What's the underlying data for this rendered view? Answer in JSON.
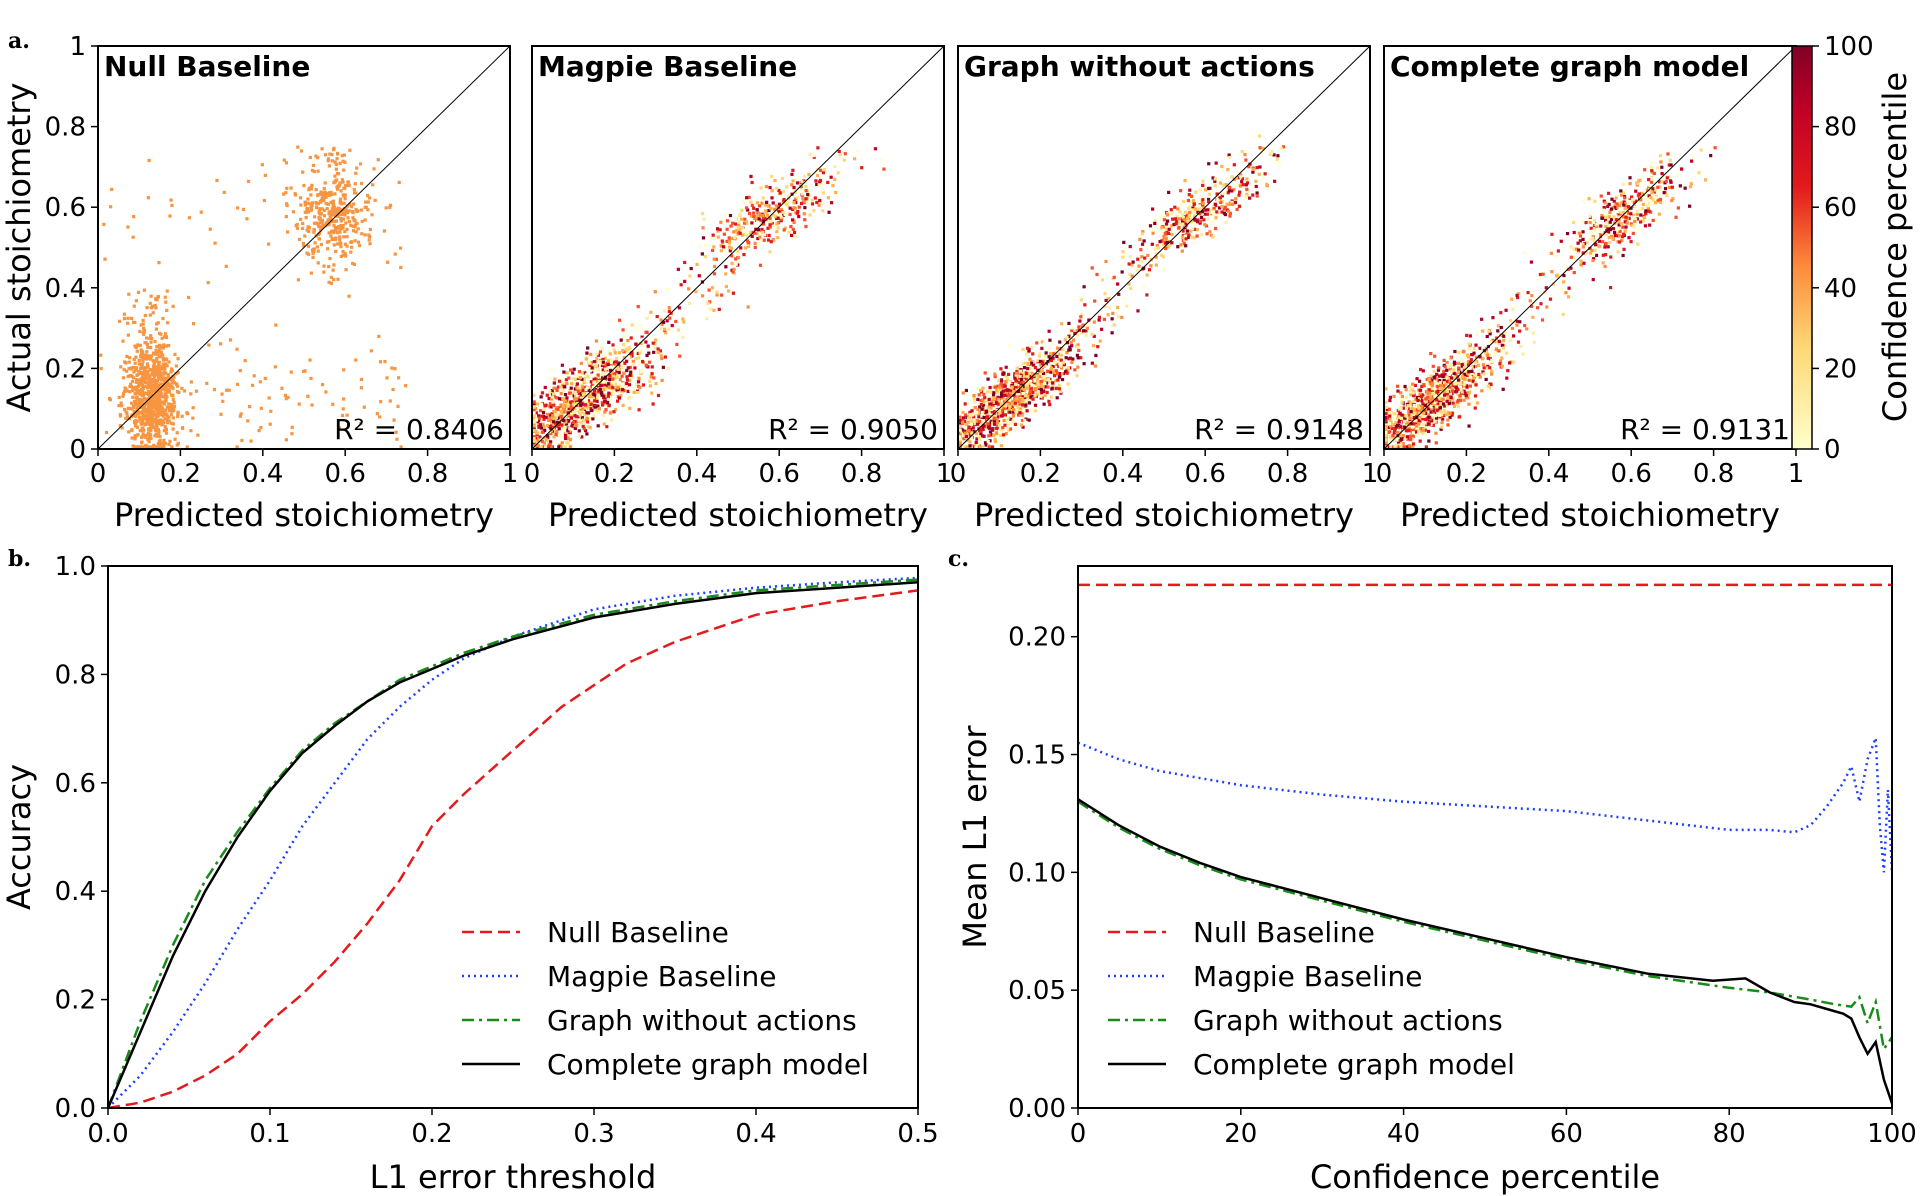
{
  "panels": {
    "a": "a.",
    "b": "b.",
    "c": "c."
  },
  "chart_data": [
    {
      "type": "scatter",
      "id": "a",
      "xlabel": "Predicted stoichiometry",
      "ylabel": "Actual stoichiometry",
      "xlim": [
        0,
        1
      ],
      "ylim": [
        0,
        1
      ],
      "xticks": [
        "0",
        "0.2",
        "0.4",
        "0.6",
        "0.8",
        "1"
      ],
      "yticks": [
        "0",
        "0.2",
        "0.4",
        "0.6",
        "0.8",
        "1"
      ],
      "colorbar": {
        "label": "Confidence percentile",
        "range": [
          0,
          100
        ],
        "ticks": [
          "0",
          "20",
          "40",
          "60",
          "80",
          "100"
        ]
      },
      "subplots": [
        {
          "title": "Null Baseline",
          "r2_text": "R² = 0.8406",
          "r2": 0.8406,
          "color_mode": "uniform"
        },
        {
          "title": "Magpie Baseline",
          "r2_text": "R² = 0.9050",
          "r2": 0.905,
          "color_mode": "confidence"
        },
        {
          "title": "Graph without actions",
          "r2_text": "R² = 0.9148",
          "r2": 0.9148,
          "color_mode": "confidence"
        },
        {
          "title": "Complete graph model",
          "r2_text": "R² = 0.9131",
          "r2": 0.9131,
          "color_mode": "confidence"
        }
      ]
    },
    {
      "type": "line",
      "id": "b",
      "xlabel": "L1 error threshold",
      "ylabel": "Accuracy",
      "xlim": [
        0,
        0.5
      ],
      "ylim": [
        0,
        1
      ],
      "xticks": [
        0,
        0.1,
        0.2,
        0.3,
        0.4,
        0.5
      ],
      "xtick_labels": [
        "0.0",
        "0.1",
        "0.2",
        "0.3",
        "0.4",
        "0.5"
      ],
      "yticks": [
        0,
        0.2,
        0.4,
        0.6,
        0.8,
        1.0
      ],
      "ytick_labels": [
        "0.0",
        "0.2",
        "0.4",
        "0.6",
        "0.8",
        "1.0"
      ],
      "series": [
        {
          "name": "Null Baseline",
          "color": "#e41a1c",
          "dash": "dashed",
          "x": [
            0,
            0.02,
            0.04,
            0.06,
            0.08,
            0.1,
            0.12,
            0.14,
            0.16,
            0.18,
            0.2,
            0.22,
            0.25,
            0.28,
            0.3,
            0.32,
            0.35,
            0.38,
            0.4,
            0.45,
            0.5
          ],
          "y": [
            0,
            0.01,
            0.03,
            0.06,
            0.1,
            0.16,
            0.21,
            0.27,
            0.34,
            0.42,
            0.52,
            0.58,
            0.66,
            0.74,
            0.78,
            0.82,
            0.86,
            0.89,
            0.91,
            0.935,
            0.955
          ]
        },
        {
          "name": "Magpie Baseline",
          "color": "#1f3fff",
          "dash": "dotted",
          "x": [
            0,
            0.02,
            0.04,
            0.06,
            0.08,
            0.1,
            0.12,
            0.14,
            0.16,
            0.18,
            0.2,
            0.22,
            0.25,
            0.28,
            0.3,
            0.35,
            0.4,
            0.45,
            0.5
          ],
          "y": [
            0,
            0.06,
            0.14,
            0.23,
            0.33,
            0.42,
            0.52,
            0.6,
            0.68,
            0.74,
            0.79,
            0.83,
            0.87,
            0.9,
            0.92,
            0.945,
            0.96,
            0.97,
            0.978
          ]
        },
        {
          "name": "Graph without actions",
          "color": "#1a8a1a",
          "dash": "dashdot",
          "x": [
            0,
            0.02,
            0.04,
            0.06,
            0.08,
            0.1,
            0.12,
            0.14,
            0.16,
            0.18,
            0.2,
            0.22,
            0.25,
            0.3,
            0.35,
            0.4,
            0.45,
            0.5
          ],
          "y": [
            0,
            0.16,
            0.3,
            0.42,
            0.51,
            0.59,
            0.66,
            0.71,
            0.75,
            0.79,
            0.815,
            0.84,
            0.87,
            0.91,
            0.935,
            0.955,
            0.965,
            0.975
          ]
        },
        {
          "name": "Complete graph model",
          "color": "#000000",
          "dash": "solid",
          "x": [
            0,
            0.02,
            0.04,
            0.06,
            0.08,
            0.1,
            0.12,
            0.14,
            0.16,
            0.18,
            0.2,
            0.22,
            0.25,
            0.3,
            0.35,
            0.4,
            0.45,
            0.5
          ],
          "y": [
            0,
            0.14,
            0.28,
            0.4,
            0.5,
            0.585,
            0.655,
            0.705,
            0.75,
            0.785,
            0.81,
            0.835,
            0.865,
            0.905,
            0.93,
            0.95,
            0.96,
            0.97
          ]
        }
      ],
      "legend_loc": "lower-right"
    },
    {
      "type": "line",
      "id": "c",
      "xlabel": "Confidence percentile",
      "ylabel": "Mean L1 error",
      "xlim": [
        0,
        100
      ],
      "ylim": [
        0,
        0.23
      ],
      "xticks": [
        0,
        20,
        40,
        60,
        80,
        100
      ],
      "xtick_labels": [
        "0",
        "20",
        "40",
        "60",
        "80",
        "100"
      ],
      "yticks": [
        0,
        0.05,
        0.1,
        0.15,
        0.2
      ],
      "ytick_labels": [
        "0.00",
        "0.05",
        "0.10",
        "0.15",
        "0.20"
      ],
      "series": [
        {
          "name": "Null Baseline",
          "color": "#e41a1c",
          "dash": "dashed",
          "x": [
            0,
            100
          ],
          "y": [
            0.222,
            0.222
          ]
        },
        {
          "name": "Magpie Baseline",
          "color": "#1f3fff",
          "dash": "dotted",
          "x": [
            0,
            5,
            10,
            15,
            20,
            30,
            40,
            50,
            60,
            70,
            75,
            80,
            85,
            88,
            90,
            92,
            94,
            95,
            96,
            97,
            98,
            98.5,
            99,
            99.5,
            100
          ],
          "y": [
            0.155,
            0.148,
            0.143,
            0.14,
            0.137,
            0.133,
            0.13,
            0.128,
            0.126,
            0.122,
            0.12,
            0.118,
            0.118,
            0.117,
            0.12,
            0.128,
            0.138,
            0.145,
            0.13,
            0.148,
            0.157,
            0.12,
            0.1,
            0.135,
            0.1
          ]
        },
        {
          "name": "Graph without actions",
          "color": "#1a8a1a",
          "dash": "dashdot",
          "x": [
            0,
            5,
            10,
            15,
            20,
            30,
            40,
            50,
            60,
            70,
            80,
            85,
            90,
            93,
            95,
            96,
            97,
            98,
            99,
            100
          ],
          "y": [
            0.13,
            0.119,
            0.11,
            0.103,
            0.097,
            0.088,
            0.079,
            0.071,
            0.063,
            0.056,
            0.051,
            0.049,
            0.046,
            0.044,
            0.043,
            0.047,
            0.036,
            0.045,
            0.025,
            0.03
          ]
        },
        {
          "name": "Complete graph model",
          "color": "#000000",
          "dash": "solid",
          "x": [
            0,
            5,
            10,
            15,
            20,
            30,
            40,
            50,
            60,
            70,
            78,
            82,
            85,
            88,
            90,
            92,
            94,
            95,
            96,
            97,
            98,
            99,
            100
          ],
          "y": [
            0.131,
            0.12,
            0.111,
            0.104,
            0.098,
            0.089,
            0.08,
            0.072,
            0.064,
            0.057,
            0.054,
            0.055,
            0.049,
            0.045,
            0.044,
            0.042,
            0.04,
            0.038,
            0.03,
            0.023,
            0.028,
            0.012,
            0.002
          ]
        }
      ],
      "legend_loc": "lower-left"
    }
  ]
}
